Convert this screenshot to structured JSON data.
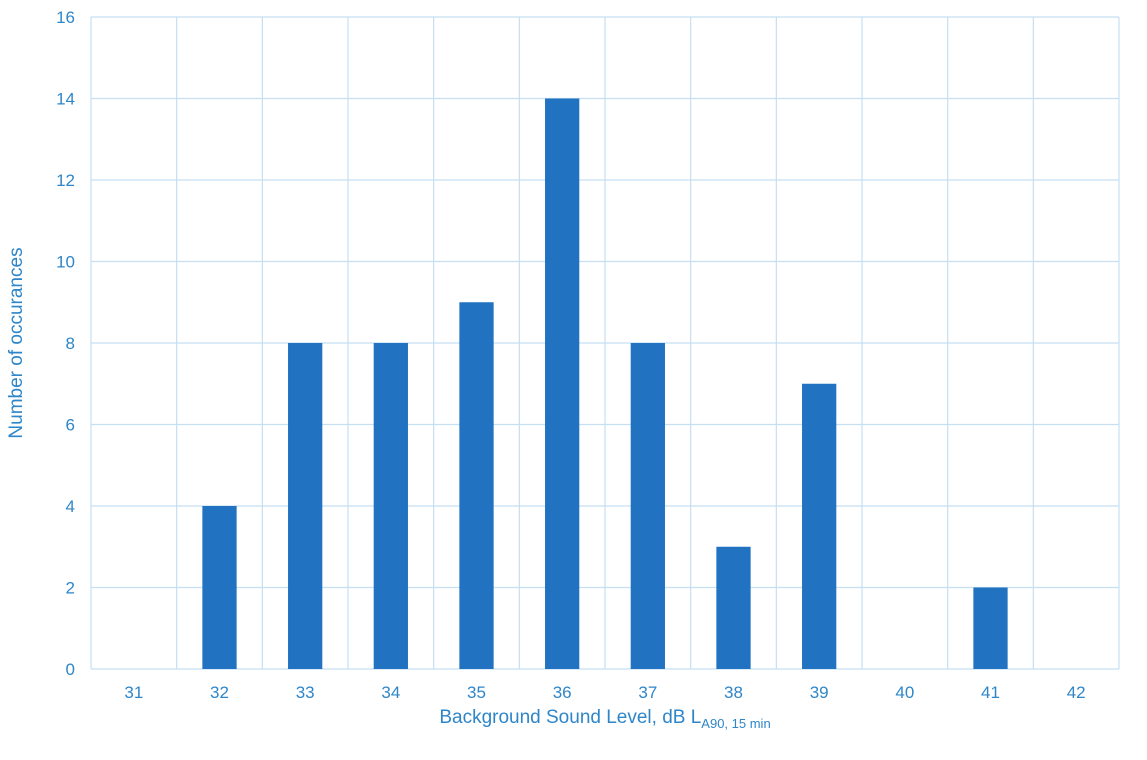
{
  "chart_data": {
    "type": "bar",
    "categories": [
      "31",
      "32",
      "33",
      "34",
      "35",
      "36",
      "37",
      "38",
      "39",
      "40",
      "41",
      "42"
    ],
    "values": [
      0,
      4,
      8,
      8,
      9,
      14,
      8,
      3,
      7,
      0,
      2,
      0
    ],
    "xlabel": {
      "main": "Background Sound Level, dB L",
      "subscript": "A90, 15 min"
    },
    "ylabel": "Number of occurances",
    "ylim": [
      0,
      16
    ],
    "yticks": [
      0,
      2,
      4,
      6,
      8,
      10,
      12,
      14,
      16
    ],
    "grid": true,
    "legend": "none"
  },
  "colors": {
    "bar": "#2172C0",
    "grid": "#C5DFF3",
    "text": "#2E86C9"
  }
}
